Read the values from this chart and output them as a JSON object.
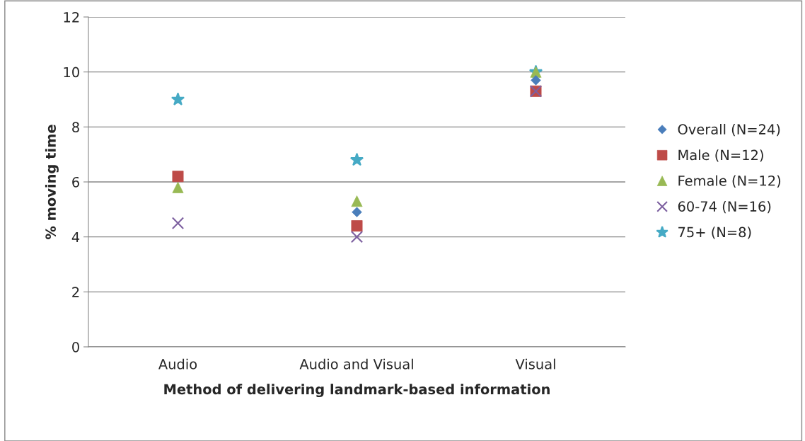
{
  "chart_data": {
    "type": "scatter",
    "xlabel": "Method of delivering landmark-based information",
    "ylabel": "% moving time",
    "categories": [
      "Audio",
      "Audio and Visual",
      "Visual"
    ],
    "series": [
      {
        "name": "Overall (N=24)",
        "color": "#4a7ebb",
        "marker": "diamond",
        "values": [
          null,
          4.9,
          9.7
        ]
      },
      {
        "name": "Male (N=12)",
        "color": "#be4b48",
        "marker": "square",
        "values": [
          6.2,
          4.4,
          9.3
        ]
      },
      {
        "name": "Female (N=12)",
        "color": "#98b954",
        "marker": "triangle",
        "values": [
          5.8,
          5.3,
          10.0
        ]
      },
      {
        "name": "60-74 (N=16)",
        "color": "#7d60a0",
        "marker": "cross",
        "values": [
          4.5,
          4.0,
          9.3
        ]
      },
      {
        "name": "75+ (N=8)",
        "color": "#46aac5",
        "marker": "star",
        "values": [
          9.0,
          6.8,
          10.0
        ]
      }
    ],
    "ylim": [
      0,
      12
    ],
    "yticks": [
      0,
      2,
      4,
      6,
      8,
      10,
      12
    ],
    "grid": "y",
    "legend": "right"
  }
}
